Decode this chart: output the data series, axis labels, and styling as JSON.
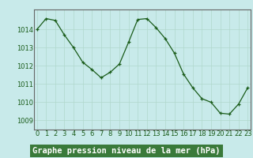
{
  "x": [
    0,
    1,
    2,
    3,
    4,
    5,
    6,
    7,
    8,
    9,
    10,
    11,
    12,
    13,
    14,
    15,
    16,
    17,
    18,
    19,
    20,
    21,
    22,
    23
  ],
  "y": [
    1014.0,
    1014.6,
    1014.5,
    1013.7,
    1013.0,
    1012.2,
    1011.8,
    1011.35,
    1011.65,
    1012.1,
    1013.3,
    1014.55,
    1014.6,
    1014.1,
    1013.5,
    1012.7,
    1011.55,
    1010.8,
    1010.2,
    1010.0,
    1009.4,
    1009.35,
    1009.9,
    1010.8
  ],
  "line_color": "#1a5c1a",
  "marker_color": "#1a5c1a",
  "bg_color": "#c8eaea",
  "grid_color": "#b0d8cc",
  "xlabel": "Graphe pression niveau de la mer (hPa)",
  "xlabel_color": "#1a5c1a",
  "ylabel_ticks": [
    1009,
    1010,
    1011,
    1012,
    1013,
    1014
  ],
  "ylim": [
    1008.5,
    1015.1
  ],
  "xlim": [
    -0.3,
    23.3
  ],
  "tick_label_color": "#1a5c1a",
  "axis_color": "#666666",
  "xlabel_fontsize": 7.5,
  "tick_fontsize": 6.0,
  "bottom_label_color": "#1a5c1a",
  "bottom_bg": "#3a7a3a"
}
